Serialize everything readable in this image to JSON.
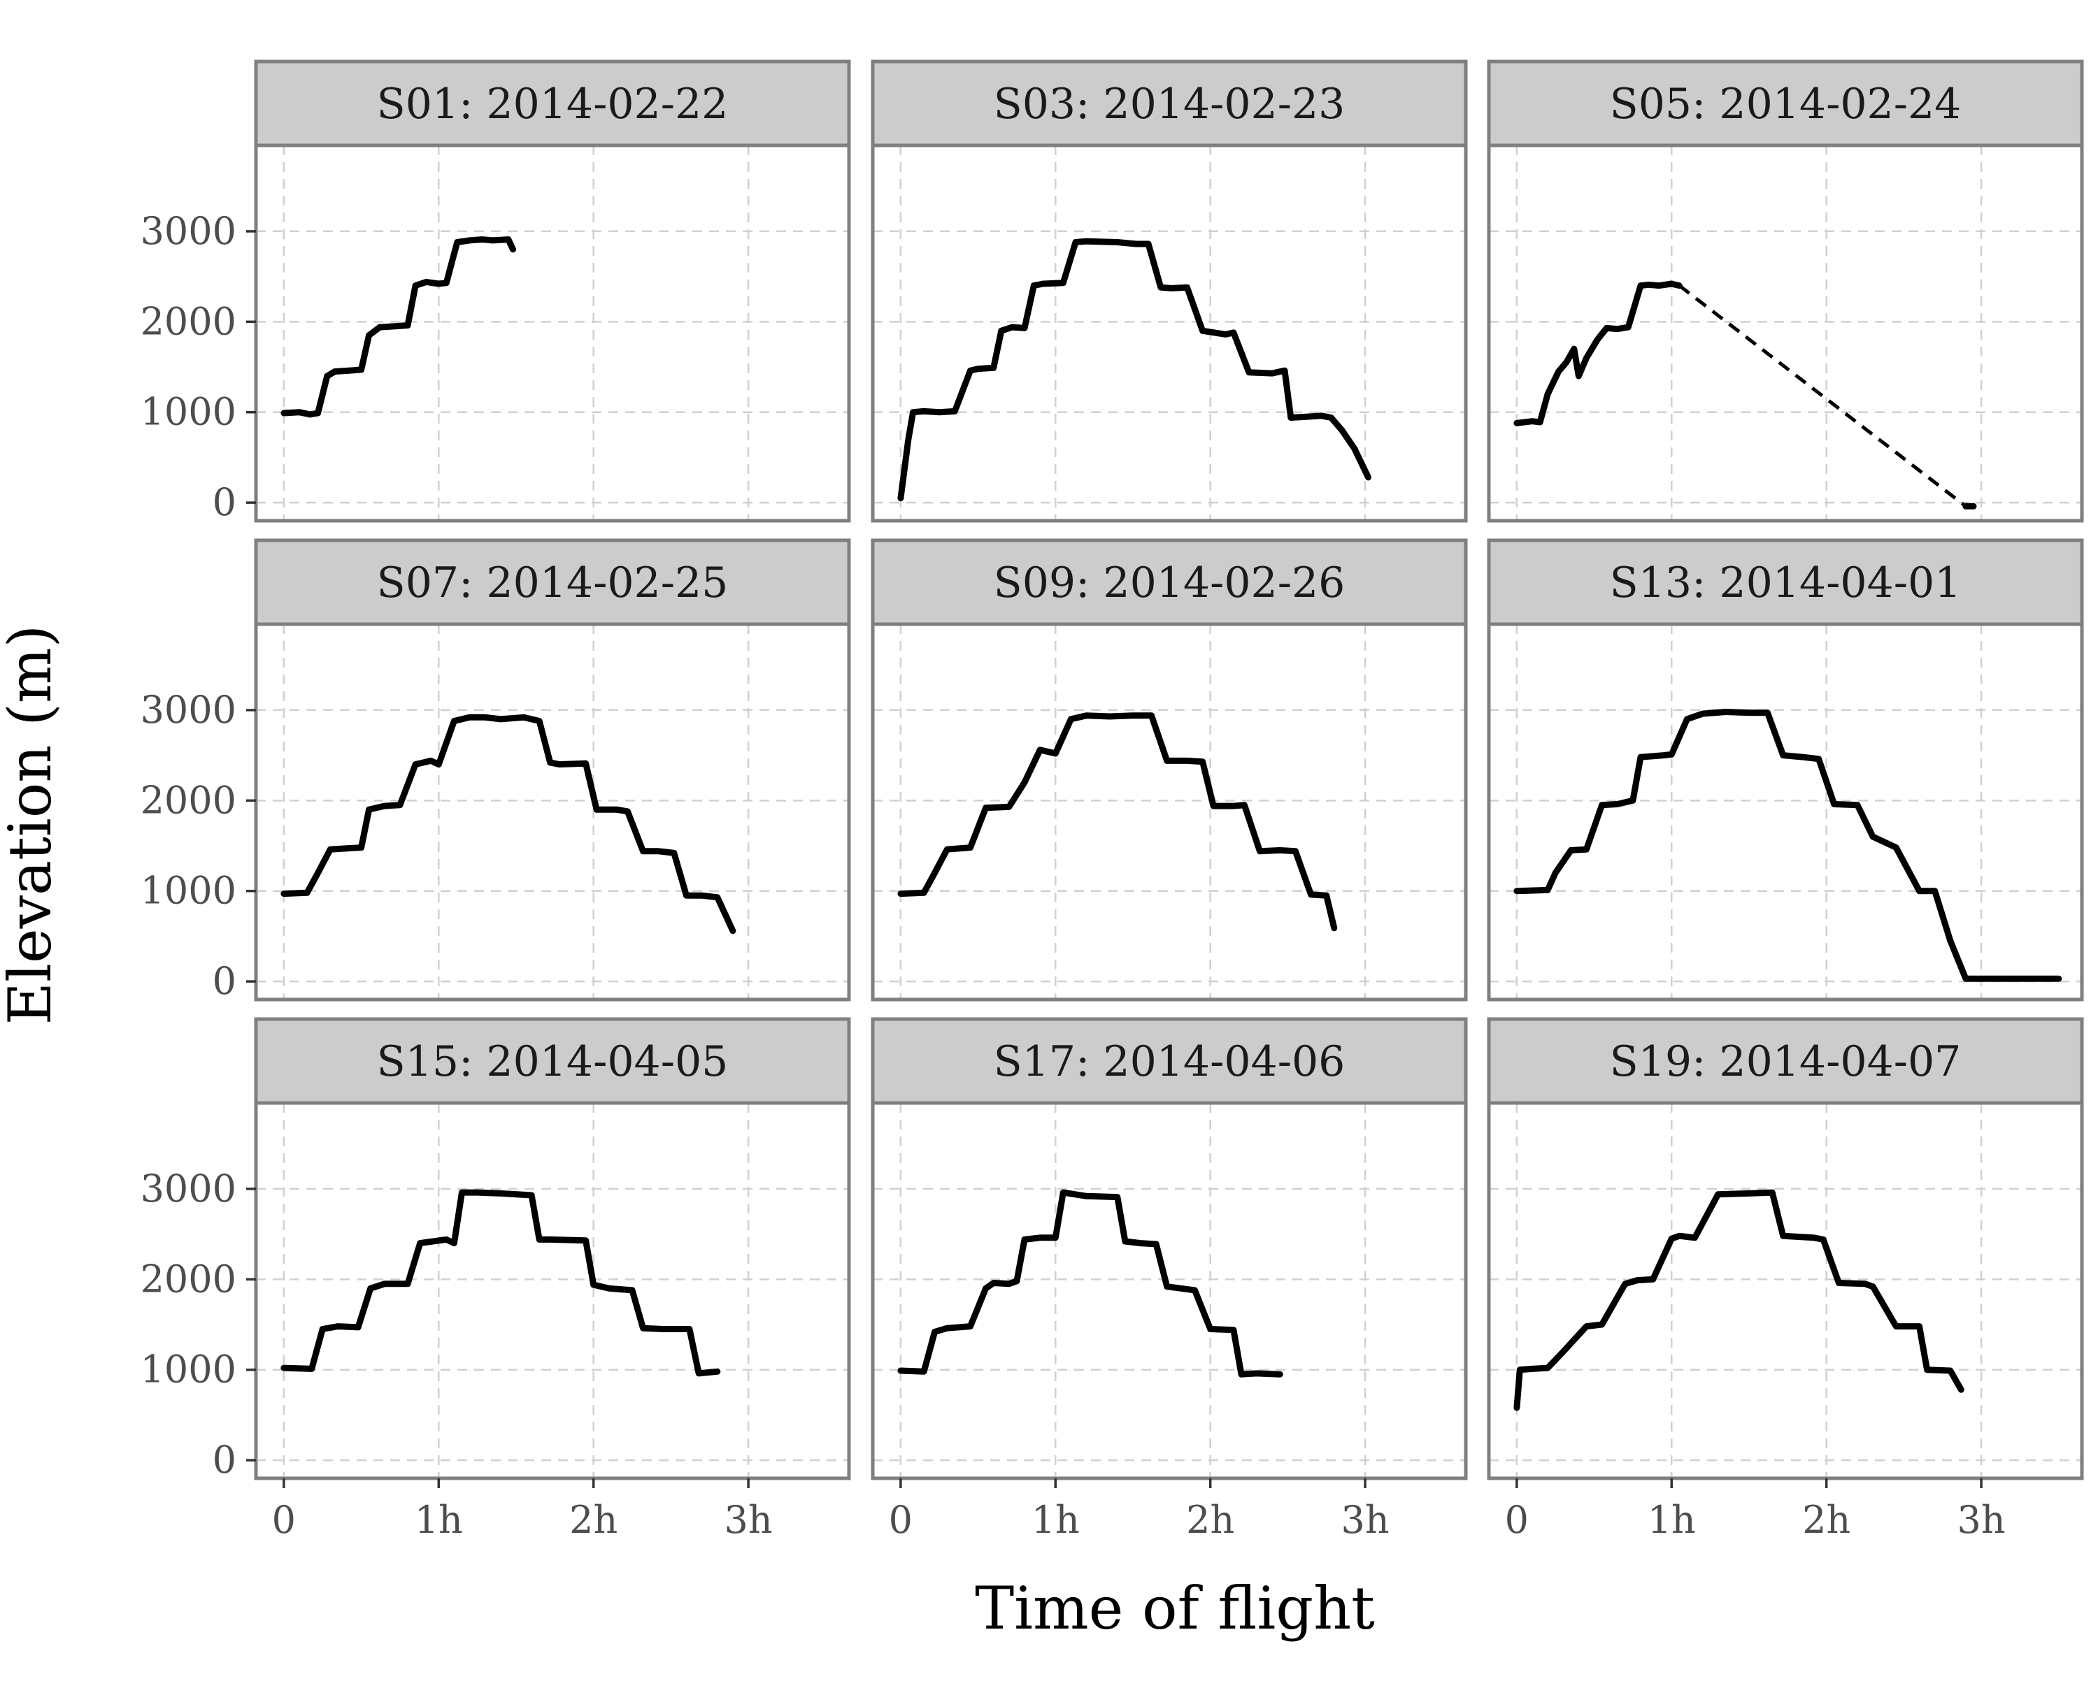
{
  "chart_data": {
    "type": "line",
    "xlabel": "Time of flight",
    "ylabel": "Elevation (m)",
    "x_unit": "hours",
    "xlim": [
      -0.18,
      3.65
    ],
    "ylim": [
      -200,
      3950
    ],
    "x_ticks": [
      0,
      1,
      2,
      3
    ],
    "x_tick_labels": [
      "0",
      "1h",
      "2h",
      "3h"
    ],
    "y_ticks": [
      0,
      1000,
      2000,
      3000
    ],
    "y_tick_labels": [
      "0",
      "1000",
      "2000",
      "3000"
    ],
    "grid": true,
    "panels": [
      {
        "label": "S01: 2014-02-22",
        "x": [
          0.0,
          0.1,
          0.17,
          0.22,
          0.28,
          0.33,
          0.42,
          0.5,
          0.55,
          0.62,
          0.72,
          0.8,
          0.85,
          0.92,
          1.0,
          1.05,
          1.12,
          1.2,
          1.28,
          1.35,
          1.45,
          1.48
        ],
        "y": [
          990,
          1000,
          975,
          990,
          1400,
          1450,
          1460,
          1470,
          1850,
          1940,
          1950,
          1960,
          2400,
          2440,
          2420,
          2430,
          2880,
          2900,
          2910,
          2900,
          2910,
          2800
        ]
      },
      {
        "label": "S03: 2014-02-23",
        "x": [
          0.0,
          0.05,
          0.08,
          0.15,
          0.25,
          0.35,
          0.45,
          0.5,
          0.6,
          0.65,
          0.72,
          0.8,
          0.86,
          0.92,
          1.05,
          1.13,
          1.2,
          1.4,
          1.52,
          1.6,
          1.68,
          1.75,
          1.85,
          1.95,
          2.1,
          2.15,
          2.25,
          2.4,
          2.48,
          2.52,
          2.62,
          2.72,
          2.78,
          2.85,
          2.93,
          3.02
        ],
        "y": [
          50,
          700,
          1000,
          1010,
          1000,
          1010,
          1460,
          1480,
          1490,
          1900,
          1940,
          1930,
          2400,
          2420,
          2430,
          2880,
          2890,
          2880,
          2860,
          2860,
          2380,
          2370,
          2380,
          1900,
          1860,
          1880,
          1440,
          1430,
          1460,
          940,
          950,
          960,
          940,
          800,
          600,
          280
        ]
      },
      {
        "label": "S05: 2014-02-24",
        "x": [
          0.0,
          0.1,
          0.15,
          0.2,
          0.27,
          0.32,
          0.37,
          0.4,
          0.45,
          0.52,
          0.58,
          0.65,
          0.72,
          0.8,
          0.85,
          0.92,
          1.0,
          1.05
        ],
        "y": [
          880,
          900,
          890,
          1200,
          1450,
          1550,
          1700,
          1400,
          1600,
          1800,
          1930,
          1920,
          1940,
          2400,
          2410,
          2400,
          2420,
          2400
        ],
        "gap_x": [
          1.05,
          2.9
        ],
        "gap_y": [
          2400,
          -40
        ],
        "tail_x": [
          2.9,
          2.95
        ],
        "tail_y": [
          -40,
          -40
        ]
      },
      {
        "label": "S07: 2014-02-25",
        "x": [
          0.0,
          0.15,
          0.22,
          0.3,
          0.4,
          0.5,
          0.55,
          0.65,
          0.75,
          0.85,
          0.95,
          1.0,
          1.1,
          1.2,
          1.3,
          1.4,
          1.55,
          1.65,
          1.72,
          1.78,
          1.95,
          2.02,
          2.15,
          2.22,
          2.32,
          2.42,
          2.52,
          2.6,
          2.7,
          2.8,
          2.9
        ],
        "y": [
          970,
          980,
          1200,
          1460,
          1470,
          1480,
          1900,
          1940,
          1950,
          2400,
          2440,
          2400,
          2880,
          2920,
          2920,
          2900,
          2920,
          2880,
          2420,
          2400,
          2410,
          1900,
          1900,
          1880,
          1440,
          1440,
          1420,
          950,
          950,
          930,
          560
        ]
      },
      {
        "label": "S09: 2014-02-26",
        "x": [
          0.0,
          0.15,
          0.22,
          0.3,
          0.45,
          0.55,
          0.7,
          0.8,
          0.9,
          1.0,
          1.1,
          1.2,
          1.35,
          1.5,
          1.62,
          1.72,
          1.85,
          1.95,
          2.02,
          2.15,
          2.22,
          2.32,
          2.45,
          2.55,
          2.65,
          2.75,
          2.8
        ],
        "y": [
          970,
          980,
          1200,
          1460,
          1480,
          1920,
          1930,
          2200,
          2560,
          2520,
          2900,
          2940,
          2930,
          2940,
          2940,
          2440,
          2440,
          2430,
          1940,
          1940,
          1950,
          1440,
          1450,
          1440,
          960,
          950,
          590
        ]
      },
      {
        "label": "S13: 2014-04-01",
        "x": [
          0.0,
          0.2,
          0.25,
          0.35,
          0.45,
          0.55,
          0.65,
          0.75,
          0.8,
          0.95,
          1.0,
          1.1,
          1.2,
          1.35,
          1.5,
          1.62,
          1.72,
          1.85,
          1.95,
          2.05,
          2.2,
          2.3,
          2.45,
          2.6,
          2.7,
          2.8,
          2.9,
          2.95,
          3.0,
          3.2,
          3.5
        ],
        "y": [
          1000,
          1010,
          1200,
          1450,
          1460,
          1950,
          1960,
          2000,
          2480,
          2500,
          2510,
          2900,
          2960,
          2980,
          2970,
          2970,
          2500,
          2480,
          2460,
          1960,
          1950,
          1600,
          1480,
          1000,
          1000,
          450,
          30,
          30,
          30,
          30,
          30
        ]
      },
      {
        "label": "S15: 2014-04-05",
        "x": [
          0.0,
          0.18,
          0.25,
          0.35,
          0.48,
          0.56,
          0.65,
          0.8,
          0.88,
          1.05,
          1.1,
          1.15,
          1.25,
          1.4,
          1.6,
          1.65,
          1.72,
          1.95,
          2.0,
          2.1,
          2.25,
          2.32,
          2.45,
          2.62,
          2.68,
          2.8
        ],
        "y": [
          1020,
          1010,
          1450,
          1480,
          1470,
          1900,
          1950,
          1950,
          2400,
          2440,
          2400,
          2960,
          2960,
          2950,
          2930,
          2440,
          2440,
          2430,
          1940,
          1900,
          1880,
          1460,
          1450,
          1450,
          960,
          980
        ]
      },
      {
        "label": "S17: 2014-04-06",
        "x": [
          0.0,
          0.15,
          0.22,
          0.3,
          0.45,
          0.55,
          0.6,
          0.7,
          0.75,
          0.8,
          0.9,
          1.0,
          1.05,
          1.2,
          1.4,
          1.45,
          1.55,
          1.65,
          1.72,
          1.9,
          2.0,
          2.15,
          2.2,
          2.3,
          2.45
        ],
        "y": [
          990,
          980,
          1420,
          1460,
          1480,
          1900,
          1960,
          1950,
          1980,
          2440,
          2460,
          2460,
          2960,
          2920,
          2910,
          2420,
          2400,
          2390,
          1920,
          1880,
          1450,
          1440,
          950,
          960,
          950
        ]
      },
      {
        "label": "S19: 2014-04-07",
        "x": [
          0.0,
          0.02,
          0.1,
          0.2,
          0.3,
          0.45,
          0.55,
          0.7,
          0.78,
          0.88,
          1.0,
          1.05,
          1.15,
          1.3,
          1.5,
          1.65,
          1.72,
          1.92,
          1.98,
          2.08,
          2.25,
          2.3,
          2.45,
          2.6,
          2.65,
          2.8,
          2.87
        ],
        "y": [
          580,
          1000,
          1010,
          1020,
          1200,
          1480,
          1500,
          1950,
          1990,
          2000,
          2450,
          2480,
          2460,
          2940,
          2950,
          2960,
          2480,
          2460,
          2440,
          1960,
          1950,
          1920,
          1480,
          1480,
          1000,
          990,
          780
        ]
      }
    ]
  }
}
